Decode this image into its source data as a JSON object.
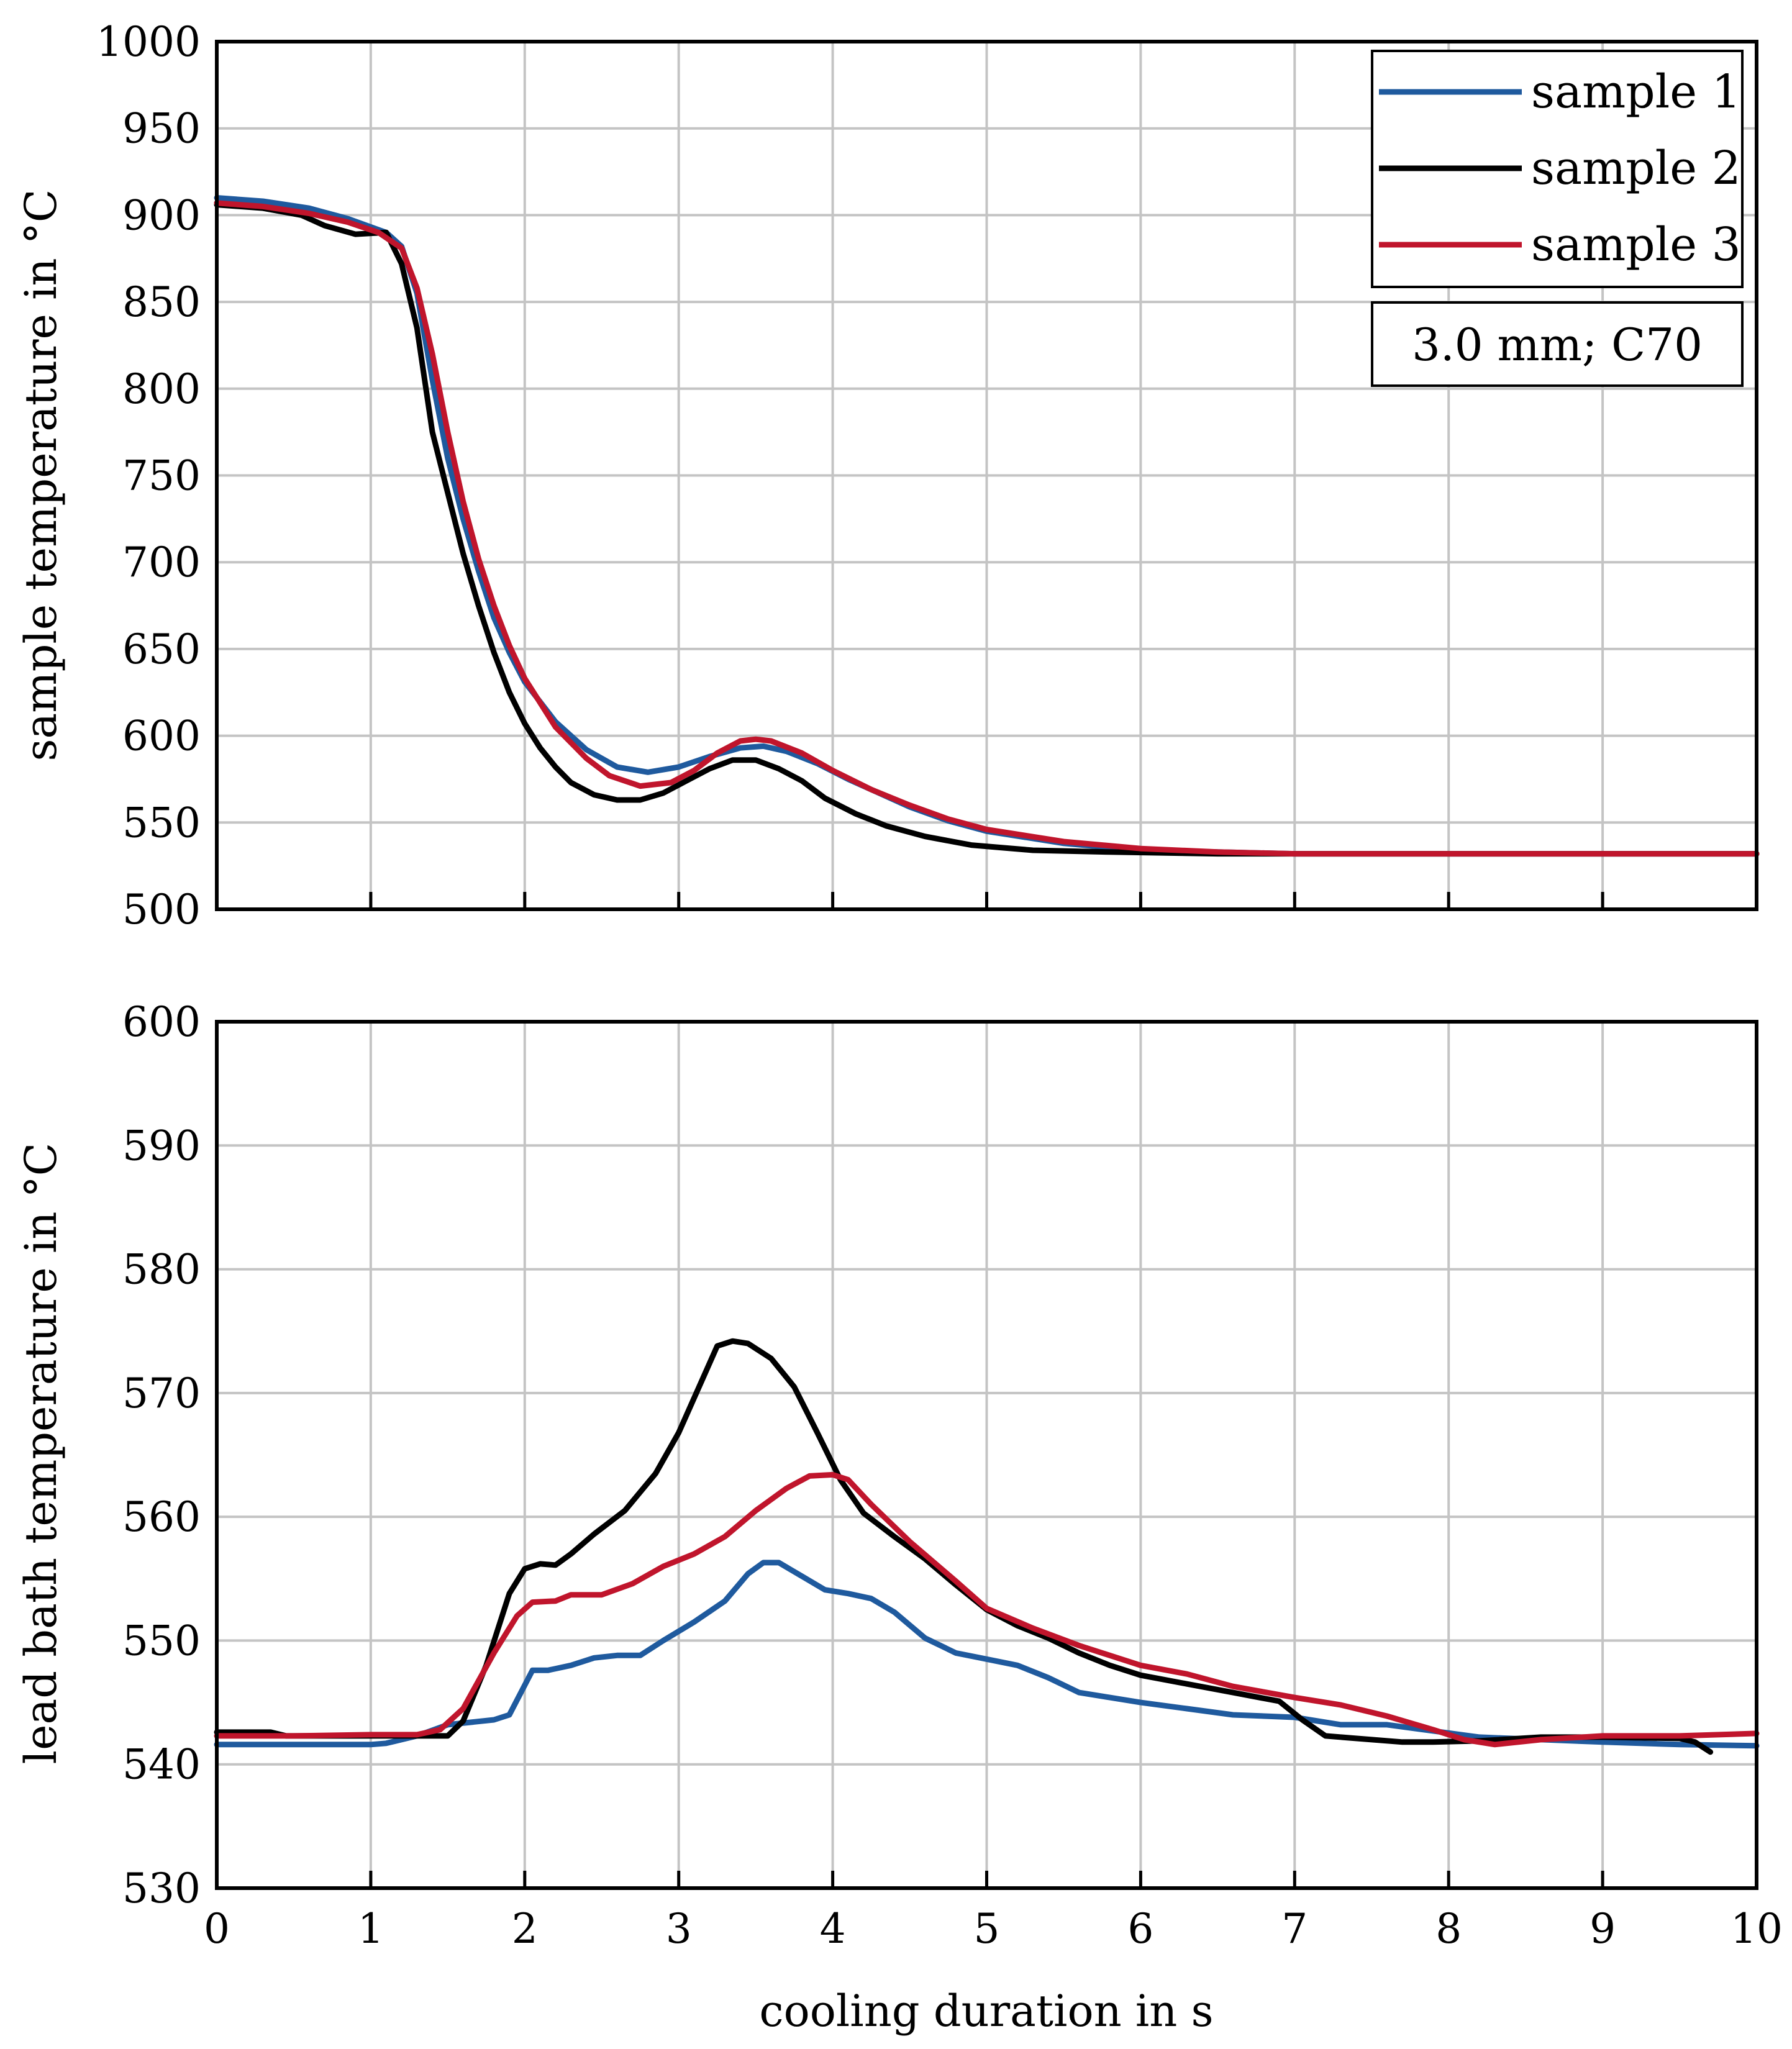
{
  "chart_data": [
    {
      "type": "line",
      "panel": "top",
      "title": "",
      "xlabel": "",
      "ylabel": "sample temperature in °C",
      "xlim": [
        0,
        10
      ],
      "ylim": [
        500,
        1000
      ],
      "x_ticks": [
        0,
        1,
        2,
        3,
        4,
        5,
        6,
        7,
        8,
        9,
        10
      ],
      "y_ticks": [
        500,
        550,
        600,
        650,
        700,
        750,
        800,
        850,
        900,
        950,
        1000
      ],
      "y_tick_labels": [
        "500",
        "550",
        "600",
        "650",
        "700",
        "750",
        "800",
        "850",
        "900",
        "950",
        "1000"
      ],
      "grid": true,
      "legend_position": "top-right",
      "annotation": "3.0 mm; C70",
      "series": [
        {
          "name": "sample 1",
          "color": "#1f5a9e",
          "points": [
            [
              0,
              910
            ],
            [
              0.3,
              908
            ],
            [
              0.6,
              904
            ],
            [
              0.85,
              898
            ],
            [
              1.1,
              890
            ],
            [
              1.2,
              882
            ],
            [
              1.3,
              855
            ],
            [
              1.4,
              805
            ],
            [
              1.5,
              760
            ],
            [
              1.6,
              725
            ],
            [
              1.7,
              695
            ],
            [
              1.8,
              668
            ],
            [
              1.9,
              648
            ],
            [
              2.0,
              631
            ],
            [
              2.2,
              608
            ],
            [
              2.4,
              592
            ],
            [
              2.6,
              582
            ],
            [
              2.8,
              579
            ],
            [
              3.0,
              582
            ],
            [
              3.2,
              588
            ],
            [
              3.4,
              593
            ],
            [
              3.55,
              594
            ],
            [
              3.7,
              591
            ],
            [
              3.9,
              584
            ],
            [
              4.1,
              575
            ],
            [
              4.3,
              567
            ],
            [
              4.5,
              559
            ],
            [
              4.75,
              551
            ],
            [
              5.0,
              545
            ],
            [
              5.5,
              538
            ],
            [
              6.0,
              534
            ],
            [
              6.5,
              533
            ],
            [
              7,
              532
            ],
            [
              8,
              532
            ],
            [
              9,
              532
            ],
            [
              10,
              532
            ]
          ]
        },
        {
          "name": "sample 2",
          "color": "#000000",
          "points": [
            [
              0,
              906
            ],
            [
              0.3,
              904
            ],
            [
              0.55,
              900
            ],
            [
              0.7,
              894
            ],
            [
              0.9,
              889
            ],
            [
              1.1,
              890
            ],
            [
              1.2,
              872
            ],
            [
              1.3,
              835
            ],
            [
              1.4,
              775
            ],
            [
              1.5,
              740
            ],
            [
              1.6,
              705
            ],
            [
              1.7,
              675
            ],
            [
              1.8,
              648
            ],
            [
              1.9,
              625
            ],
            [
              2.0,
              607
            ],
            [
              2.1,
              593
            ],
            [
              2.2,
              582
            ],
            [
              2.3,
              573
            ],
            [
              2.45,
              566
            ],
            [
              2.6,
              563
            ],
            [
              2.75,
              563
            ],
            [
              2.9,
              567
            ],
            [
              3.05,
              574
            ],
            [
              3.2,
              581
            ],
            [
              3.35,
              586
            ],
            [
              3.5,
              586
            ],
            [
              3.65,
              581
            ],
            [
              3.8,
              574
            ],
            [
              3.95,
              564
            ],
            [
              4.15,
              555
            ],
            [
              4.35,
              548
            ],
            [
              4.6,
              542
            ],
            [
              4.9,
              537
            ],
            [
              5.3,
              534
            ],
            [
              5.8,
              533
            ],
            [
              6.5,
              532
            ],
            [
              7.5,
              532
            ],
            [
              10,
              532
            ]
          ]
        },
        {
          "name": "sample 3",
          "color": "#c0152c",
          "points": [
            [
              0,
              907
            ],
            [
              0.3,
              905
            ],
            [
              0.6,
              901
            ],
            [
              0.85,
              896
            ],
            [
              1.05,
              890
            ],
            [
              1.2,
              881
            ],
            [
              1.3,
              858
            ],
            [
              1.4,
              820
            ],
            [
              1.5,
              775
            ],
            [
              1.6,
              735
            ],
            [
              1.7,
              702
            ],
            [
              1.8,
              675
            ],
            [
              1.9,
              652
            ],
            [
              2.0,
              633
            ],
            [
              2.2,
              605
            ],
            [
              2.4,
              587
            ],
            [
              2.55,
              577
            ],
            [
              2.75,
              571
            ],
            [
              2.95,
              573
            ],
            [
              3.1,
              580
            ],
            [
              3.25,
              590
            ],
            [
              3.4,
              597
            ],
            [
              3.5,
              598
            ],
            [
              3.6,
              597
            ],
            [
              3.8,
              590
            ],
            [
              4.0,
              580
            ],
            [
              4.25,
              569
            ],
            [
              4.5,
              560
            ],
            [
              4.75,
              552
            ],
            [
              5.0,
              546
            ],
            [
              5.5,
              539
            ],
            [
              6.0,
              535
            ],
            [
              6.5,
              533
            ],
            [
              7,
              532
            ],
            [
              8,
              532
            ],
            [
              9,
              532
            ],
            [
              10,
              532
            ]
          ]
        }
      ]
    },
    {
      "type": "line",
      "panel": "bottom",
      "title": "",
      "xlabel": "cooling duration in s",
      "ylabel": "lead bath temperature in °C",
      "xlim": [
        0,
        10
      ],
      "ylim": [
        530,
        600
      ],
      "x_ticks": [
        0,
        1,
        2,
        3,
        4,
        5,
        6,
        7,
        8,
        9,
        10
      ],
      "x_tick_labels": [
        "0",
        "1",
        "2",
        "3",
        "4",
        "5",
        "6",
        "7",
        "8",
        "9",
        "10"
      ],
      "y_ticks": [
        530,
        540,
        550,
        560,
        570,
        580,
        590,
        600
      ],
      "y_tick_labels": [
        "530",
        "540",
        "550",
        "560",
        "570",
        "580",
        "590",
        "600"
      ],
      "grid": true,
      "series": [
        {
          "name": "sample 1",
          "color": "#1f5a9e",
          "points": [
            [
              0,
              541.6
            ],
            [
              0.5,
              541.6
            ],
            [
              1.0,
              541.6
            ],
            [
              1.1,
              541.7
            ],
            [
              1.3,
              542.3
            ],
            [
              1.5,
              543.2
            ],
            [
              1.8,
              543.6
            ],
            [
              1.9,
              544.0
            ],
            [
              2.05,
              547.6
            ],
            [
              2.15,
              547.6
            ],
            [
              2.3,
              548.0
            ],
            [
              2.45,
              548.6
            ],
            [
              2.6,
              548.8
            ],
            [
              2.75,
              548.8
            ],
            [
              2.9,
              550.0
            ],
            [
              3.1,
              551.5
            ],
            [
              3.3,
              553.2
            ],
            [
              3.45,
              555.4
            ],
            [
              3.55,
              556.3
            ],
            [
              3.65,
              556.3
            ],
            [
              3.8,
              555.2
            ],
            [
              3.95,
              554.1
            ],
            [
              4.1,
              553.8
            ],
            [
              4.25,
              553.4
            ],
            [
              4.4,
              552.3
            ],
            [
              4.6,
              550.2
            ],
            [
              4.8,
              549.0
            ],
            [
              5.0,
              548.5
            ],
            [
              5.2,
              548.0
            ],
            [
              5.4,
              547.0
            ],
            [
              5.6,
              545.8
            ],
            [
              5.8,
              545.4
            ],
            [
              6.0,
              545.0
            ],
            [
              6.3,
              544.5
            ],
            [
              6.6,
              544.0
            ],
            [
              7.0,
              543.8
            ],
            [
              7.3,
              543.2
            ],
            [
              7.6,
              543.2
            ],
            [
              7.9,
              542.7
            ],
            [
              8.2,
              542.2
            ],
            [
              8.6,
              542.0
            ],
            [
              9.0,
              541.8
            ],
            [
              9.5,
              541.6
            ],
            [
              10,
              541.5
            ]
          ]
        },
        {
          "name": "sample 2",
          "color": "#000000",
          "points": [
            [
              0,
              542.6
            ],
            [
              0.35,
              542.6
            ],
            [
              0.45,
              542.3
            ],
            [
              1.0,
              542.3
            ],
            [
              1.5,
              542.3
            ],
            [
              1.6,
              543.5
            ],
            [
              1.75,
              548.0
            ],
            [
              1.9,
              553.8
            ],
            [
              2.0,
              555.8
            ],
            [
              2.1,
              556.2
            ],
            [
              2.2,
              556.1
            ],
            [
              2.3,
              557.0
            ],
            [
              2.45,
              558.6
            ],
            [
              2.65,
              560.5
            ],
            [
              2.85,
              563.5
            ],
            [
              3.0,
              566.8
            ],
            [
              3.15,
              571.0
            ],
            [
              3.25,
              573.8
            ],
            [
              3.35,
              574.2
            ],
            [
              3.45,
              574.0
            ],
            [
              3.6,
              572.8
            ],
            [
              3.75,
              570.5
            ],
            [
              3.9,
              566.8
            ],
            [
              4.05,
              563.0
            ],
            [
              4.2,
              560.3
            ],
            [
              4.4,
              558.4
            ],
            [
              4.6,
              556.6
            ],
            [
              4.8,
              554.5
            ],
            [
              5.0,
              552.5
            ],
            [
              5.2,
              551.2
            ],
            [
              5.4,
              550.2
            ],
            [
              5.6,
              549.0
            ],
            [
              5.8,
              548.0
            ],
            [
              6.0,
              547.2
            ],
            [
              6.3,
              546.5
            ],
            [
              6.6,
              545.8
            ],
            [
              6.9,
              545.1
            ],
            [
              7.05,
              543.6
            ],
            [
              7.2,
              542.3
            ],
            [
              7.5,
              542.0
            ],
            [
              7.7,
              541.8
            ],
            [
              7.9,
              541.8
            ],
            [
              8.2,
              541.9
            ],
            [
              8.6,
              542.2
            ],
            [
              9.0,
              542.2
            ],
            [
              9.5,
              542.1
            ],
            [
              9.6,
              541.8
            ],
            [
              9.7,
              541.0
            ]
          ]
        },
        {
          "name": "sample 3",
          "color": "#c0152c",
          "points": [
            [
              0,
              542.3
            ],
            [
              0.5,
              542.3
            ],
            [
              1.0,
              542.4
            ],
            [
              1.3,
              542.4
            ],
            [
              1.45,
              542.8
            ],
            [
              1.6,
              544.5
            ],
            [
              1.8,
              549.0
            ],
            [
              1.95,
              552.0
            ],
            [
              2.05,
              553.1
            ],
            [
              2.2,
              553.2
            ],
            [
              2.3,
              553.7
            ],
            [
              2.5,
              553.7
            ],
            [
              2.7,
              554.6
            ],
            [
              2.9,
              556.0
            ],
            [
              3.1,
              557.0
            ],
            [
              3.3,
              558.4
            ],
            [
              3.5,
              560.5
            ],
            [
              3.7,
              562.3
            ],
            [
              3.85,
              563.3
            ],
            [
              4.0,
              563.4
            ],
            [
              4.1,
              563.0
            ],
            [
              4.25,
              561.0
            ],
            [
              4.5,
              558.0
            ],
            [
              4.8,
              554.8
            ],
            [
              5.0,
              552.6
            ],
            [
              5.3,
              551.0
            ],
            [
              5.6,
              549.6
            ],
            [
              6.0,
              548.0
            ],
            [
              6.3,
              547.3
            ],
            [
              6.6,
              546.3
            ],
            [
              7.0,
              545.4
            ],
            [
              7.3,
              544.8
            ],
            [
              7.6,
              543.9
            ],
            [
              7.9,
              542.8
            ],
            [
              8.1,
              542.0
            ],
            [
              8.3,
              541.6
            ],
            [
              8.6,
              542.0
            ],
            [
              9.0,
              542.3
            ],
            [
              9.5,
              542.3
            ],
            [
              10,
              542.5
            ]
          ]
        }
      ]
    }
  ]
}
